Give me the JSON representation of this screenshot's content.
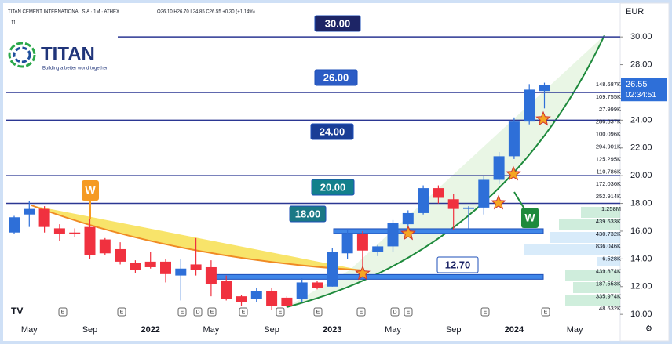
{
  "chart_data": {
    "type": "candlestick",
    "header": {
      "symbol": "TITAN CEMENT INTERNATIONAL S.A · 1M · ATHEX",
      "ohlc": "O26.10 H26.70 L24.85 C26.55 +0.30 (+1.14%)",
      "interval_badge": "11"
    },
    "logo": {
      "name": "TITAN",
      "tagline": "Building a better world together"
    },
    "currency": "EUR",
    "categories": [
      null,
      "May",
      null,
      null,
      null,
      "Sep",
      null,
      null,
      null,
      "2022",
      null,
      null,
      null,
      "May",
      null,
      null,
      null,
      "Sep",
      null,
      null,
      null,
      "2023",
      null,
      null,
      null,
      "May",
      null,
      null,
      null,
      "Sep",
      null,
      null,
      null,
      "2024",
      null,
      null,
      null,
      "May"
    ],
    "open": [
      15.9,
      17.2,
      17.6,
      16.2,
      15.9,
      16.3,
      15.4,
      14.7,
      13.7,
      13.8,
      13.8,
      12.8,
      13.6,
      13.4,
      12.4,
      11.3,
      11.1,
      11.7,
      11.2,
      11.1,
      12.3,
      12.0,
      14.4,
      15.8,
      14.5,
      14.9,
      16.5,
      17.3,
      19.1,
      18.3,
      17.6,
      17.7,
      19.7,
      21.4,
      23.9,
      26.1,
      null,
      null
    ],
    "high": [
      17.1,
      18.2,
      17.8,
      16.5,
      16.2,
      17.6,
      15.5,
      15.2,
      13.9,
      14.5,
      14.0,
      14.0,
      15.5,
      13.9,
      12.8,
      11.4,
      11.9,
      11.9,
      11.3,
      12.6,
      12.4,
      14.8,
      16.1,
      16.0,
      15.0,
      16.8,
      17.5,
      19.3,
      19.3,
      18.7,
      17.8,
      20.0,
      21.7,
      24.2,
      26.6,
      26.7,
      null,
      null
    ],
    "low": [
      15.8,
      16.3,
      15.9,
      15.3,
      15.6,
      14.0,
      14.3,
      13.6,
      13.0,
      13.3,
      12.3,
      11.0,
      12.8,
      11.3,
      11.0,
      10.6,
      10.9,
      10.3,
      10.5,
      10.9,
      11.8,
      12.0,
      14.0,
      13.0,
      14.2,
      14.5,
      16.2,
      17.2,
      18.0,
      16.1,
      16.2,
      17.2,
      19.4,
      21.2,
      23.7,
      24.85,
      null,
      null
    ],
    "close": [
      17.0,
      17.6,
      16.3,
      15.8,
      15.8,
      14.3,
      14.4,
      13.8,
      13.2,
      13.4,
      12.9,
      13.3,
      13.2,
      12.2,
      11.1,
      10.9,
      11.7,
      10.6,
      10.6,
      12.3,
      11.9,
      14.5,
      15.8,
      14.6,
      14.9,
      16.6,
      17.3,
      19.1,
      18.4,
      17.6,
      17.7,
      19.7,
      21.4,
      23.9,
      26.2,
      26.55,
      null,
      null
    ],
    "up_color": "#2e6fd8",
    "down_color": "#f0313f",
    "ylim": [
      9.5,
      32.1
    ],
    "yticks": [
      {
        "value": 10,
        "label": "10.00"
      },
      {
        "value": 12,
        "label": "12.00"
      },
      {
        "value": 14,
        "label": "14.00"
      },
      {
        "value": 16,
        "label": "16.00"
      },
      {
        "value": 18,
        "label": "18.00"
      },
      {
        "value": 20,
        "label": "20.00"
      },
      {
        "value": 22,
        "label": "22.00"
      },
      {
        "value": 24,
        "label": "24.00"
      },
      {
        "value": 26,
        "label": "26.00"
      },
      {
        "value": 28,
        "label": "28.00"
      },
      {
        "value": 30,
        "label": "30.00"
      }
    ],
    "levels": [
      {
        "value": 30,
        "label": "30.00"
      },
      {
        "value": 26,
        "label": "26.00"
      },
      {
        "value": 24,
        "label": "24.00"
      },
      {
        "value": 20,
        "label": "20.00"
      },
      {
        "value": 18,
        "label": "18.00"
      },
      {
        "value": 16
      },
      {
        "value": 12.7,
        "label": "12.70"
      }
    ],
    "last_price": {
      "value": 26.55,
      "label": "26.55"
    },
    "countdown": "02:34:51",
    "volume_labels": [
      "148.687K",
      "109.755K",
      "27.999K",
      "286.837K",
      "100.096K",
      "294.901K",
      "125.295K",
      "110.786K",
      "172.036K",
      "252.914K",
      "1.258M",
      "439.633K",
      "430.732K",
      "836.046K",
      "6.528K",
      "439.874K",
      "187.553K",
      "335.974K",
      "48.632K"
    ],
    "pattern_marks": [
      "W",
      "W"
    ],
    "event_marks": [
      "E",
      "E",
      "E",
      "D",
      "E",
      "E",
      "E",
      "E",
      "E",
      "D",
      "E",
      "E",
      "E"
    ]
  }
}
